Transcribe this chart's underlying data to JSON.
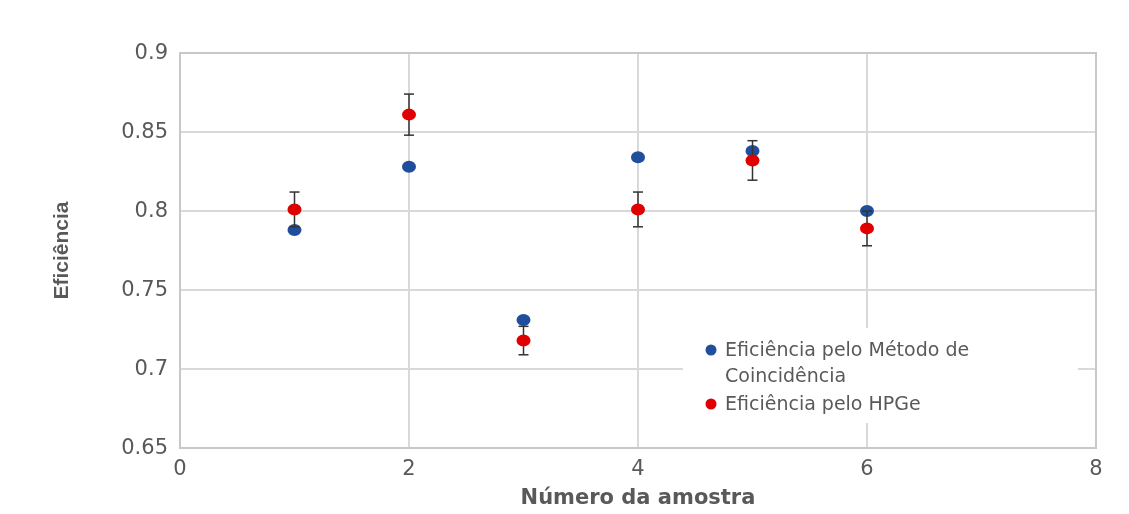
{
  "chart_data": {
    "type": "scatter",
    "xlabel": "Número da amostra",
    "ylabel": "Eficiência",
    "xlim": [
      0,
      8
    ],
    "xticks": [
      0,
      2,
      4,
      6,
      8
    ],
    "ylim": [
      0.65,
      0.9
    ],
    "yticks": [
      0.65,
      0.7,
      0.75,
      0.8,
      0.85,
      0.9
    ],
    "grid": true,
    "legend": "bottom right",
    "marker": "circle",
    "series": [
      {
        "name": "Eficiência pelo Método de Coincidência",
        "color": "#1f4e9c",
        "x": [
          1,
          2,
          3,
          4,
          5,
          6
        ],
        "values": [
          0.788,
          0.828,
          0.731,
          0.834,
          0.838,
          0.8
        ]
      },
      {
        "name": "Eficiência pelo HPGe",
        "color": "#e00000",
        "x": [
          1,
          2,
          3,
          4,
          5,
          6
        ],
        "values": [
          0.801,
          0.861,
          0.718,
          0.801,
          0.832,
          0.789
        ],
        "errors": [
          0.011,
          0.013,
          0.009,
          0.011,
          0.0125,
          0.011
        ]
      }
    ]
  }
}
